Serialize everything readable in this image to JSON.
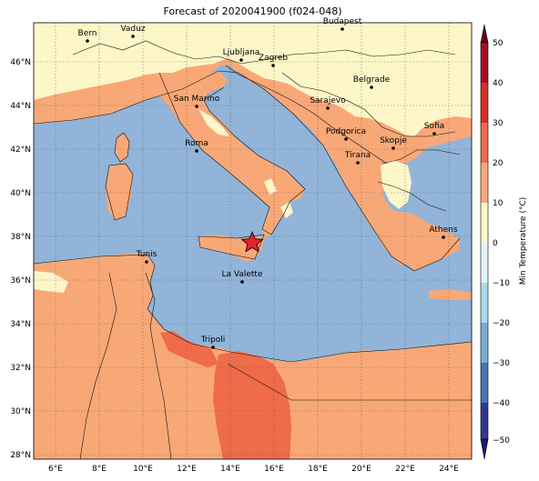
{
  "title": "Forecast of 2020041900 (f024-048)",
  "colorbar": {
    "label": "Min Temperature (°C)",
    "ticks": [
      "50",
      "40",
      "30",
      "20",
      "10",
      "0",
      "−10",
      "−20",
      "−30",
      "−40",
      "−50"
    ],
    "colors": [
      "#67001f",
      "#b2182b",
      "#d6604d",
      "#f4a582",
      "#fddbc7",
      "#fdf6c9",
      "#e0f3f8",
      "#abd9e9",
      "#74add1",
      "#4575b4",
      "#313695",
      "#1a1a78"
    ]
  },
  "map": {
    "lon_ticks": [
      "6°E",
      "8°E",
      "10°E",
      "12°E",
      "14°E",
      "16°E",
      "18°E",
      "20°E",
      "22°E",
      "24°E"
    ],
    "lat_ticks": [
      "46°N",
      "44°N",
      "42°N",
      "40°N",
      "38°N",
      "36°N",
      "34°N",
      "32°N",
      "30°N",
      "28°N"
    ],
    "colors": {
      "sea": "#91b4d8",
      "warm": "#f8a877",
      "mild": "#fdf6c9",
      "hot": "#ef6b4a"
    },
    "cities": [
      {
        "name": "Bern"
      },
      {
        "name": "Vaduz"
      },
      {
        "name": "Budapest"
      },
      {
        "name": "Ljubljana"
      },
      {
        "name": "Zagreb"
      },
      {
        "name": "Belgrade"
      },
      {
        "name": "San Marino"
      },
      {
        "name": "Sarajevo"
      },
      {
        "name": "Sofia"
      },
      {
        "name": "Podgorica"
      },
      {
        "name": "Skopje"
      },
      {
        "name": "Roma"
      },
      {
        "name": "Tirana"
      },
      {
        "name": "Athens"
      },
      {
        "name": "Tunis"
      },
      {
        "name": "La Valette"
      },
      {
        "name": "Tripoli"
      }
    ],
    "marker": "star-icon"
  }
}
